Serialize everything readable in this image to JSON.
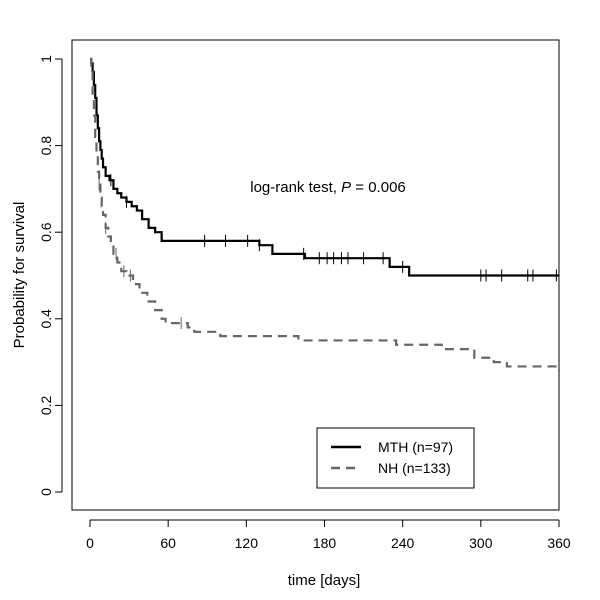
{
  "chart_data": {
    "type": "line",
    "subtype": "kaplan-meier-step",
    "title": "",
    "xlabel": "time [days]",
    "ylabel": "Probability for survival",
    "xlim": [
      0,
      360
    ],
    "ylim": [
      0,
      1
    ],
    "xticks": [
      0,
      60,
      120,
      180,
      240,
      300,
      360
    ],
    "yticks": [
      0,
      0.2,
      0.4,
      0.6,
      0.8,
      1
    ],
    "ytick_labels": [
      "0",
      "0.2",
      "0.4",
      "0.6",
      "0.8",
      "1"
    ],
    "grid": false,
    "legend_position": "bottom-right",
    "annotation": {
      "prefix": "log-rank test, ",
      "italic": "P",
      "suffix": " = 0.006"
    },
    "series": [
      {
        "name": "MTH (n=97)",
        "color": "#000000",
        "style": "solid",
        "steps": [
          [
            0,
            1.0
          ],
          [
            1,
            0.99
          ],
          [
            2,
            0.97
          ],
          [
            3,
            0.94
          ],
          [
            4,
            0.91
          ],
          [
            5,
            0.87
          ],
          [
            6,
            0.84
          ],
          [
            7,
            0.81
          ],
          [
            8,
            0.79
          ],
          [
            9,
            0.77
          ],
          [
            10,
            0.75
          ],
          [
            12,
            0.73
          ],
          [
            15,
            0.72
          ],
          [
            18,
            0.7
          ],
          [
            21,
            0.69
          ],
          [
            24,
            0.68
          ],
          [
            28,
            0.67
          ],
          [
            32,
            0.66
          ],
          [
            36,
            0.65
          ],
          [
            40,
            0.63
          ],
          [
            45,
            0.61
          ],
          [
            50,
            0.6
          ],
          [
            55,
            0.58
          ],
          [
            130,
            0.57
          ],
          [
            140,
            0.55
          ],
          [
            165,
            0.54
          ],
          [
            230,
            0.52
          ],
          [
            245,
            0.5
          ],
          [
            360,
            0.5
          ]
        ],
        "censor_x": [
          16,
          28,
          88,
          104,
          121,
          130,
          164,
          176,
          182,
          187,
          193,
          198,
          210,
          225,
          240,
          300,
          304,
          316,
          336,
          340,
          358
        ]
      },
      {
        "name": "NH (n=133)",
        "color": "#666666",
        "style": "dashed",
        "steps": [
          [
            0,
            1.0
          ],
          [
            1,
            0.97
          ],
          [
            2,
            0.92
          ],
          [
            3,
            0.87
          ],
          [
            4,
            0.82
          ],
          [
            5,
            0.78
          ],
          [
            6,
            0.74
          ],
          [
            7,
            0.71
          ],
          [
            8,
            0.68
          ],
          [
            9,
            0.66
          ],
          [
            10,
            0.64
          ],
          [
            12,
            0.61
          ],
          [
            14,
            0.59
          ],
          [
            16,
            0.57
          ],
          [
            18,
            0.55
          ],
          [
            21,
            0.53
          ],
          [
            24,
            0.51
          ],
          [
            28,
            0.5
          ],
          [
            33,
            0.48
          ],
          [
            38,
            0.46
          ],
          [
            44,
            0.44
          ],
          [
            50,
            0.42
          ],
          [
            55,
            0.4
          ],
          [
            58,
            0.39
          ],
          [
            75,
            0.38
          ],
          [
            80,
            0.37
          ],
          [
            100,
            0.36
          ],
          [
            160,
            0.35
          ],
          [
            195,
            0.35
          ],
          [
            235,
            0.34
          ],
          [
            270,
            0.33
          ],
          [
            295,
            0.31
          ],
          [
            310,
            0.3
          ],
          [
            320,
            0.29
          ],
          [
            358,
            0.29
          ],
          [
            360,
            0.28
          ]
        ],
        "censor_x": [
          7,
          12,
          20,
          26,
          31,
          70
        ]
      }
    ]
  }
}
